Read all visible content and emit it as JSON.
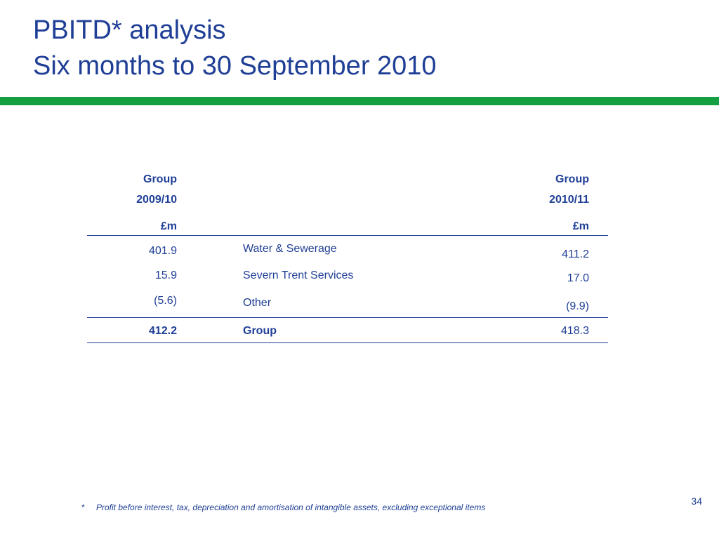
{
  "slide": {
    "title_line1": "PBITD* analysis",
    "title_line2": "Six months to 30 September 2010",
    "page_number": "34",
    "accent_color": "#14a040",
    "text_color": "#1f3f96"
  },
  "table": {
    "header_left": {
      "line1": "Group",
      "line2": "2009/10",
      "unit": "£m"
    },
    "header_right": {
      "line1": "Group",
      "line2": "2010/11",
      "unit": "£m"
    },
    "rows": [
      {
        "left_value": "401.9",
        "label": "Water & Sewerage",
        "right_value": "411.2"
      },
      {
        "left_value": "15.9",
        "label": "Severn Trent Services",
        "right_value": "17.0"
      },
      {
        "left_value": "(5.6)",
        "label": "Other",
        "right_value": "(9.9)"
      }
    ],
    "total": {
      "left_value": "412.2",
      "label": "Group",
      "right_value": "418.3"
    }
  },
  "footnote": {
    "marker": "*",
    "text": "Profit before interest, tax, depreciation  and amortisation of intangible assets, excluding exceptional items"
  }
}
